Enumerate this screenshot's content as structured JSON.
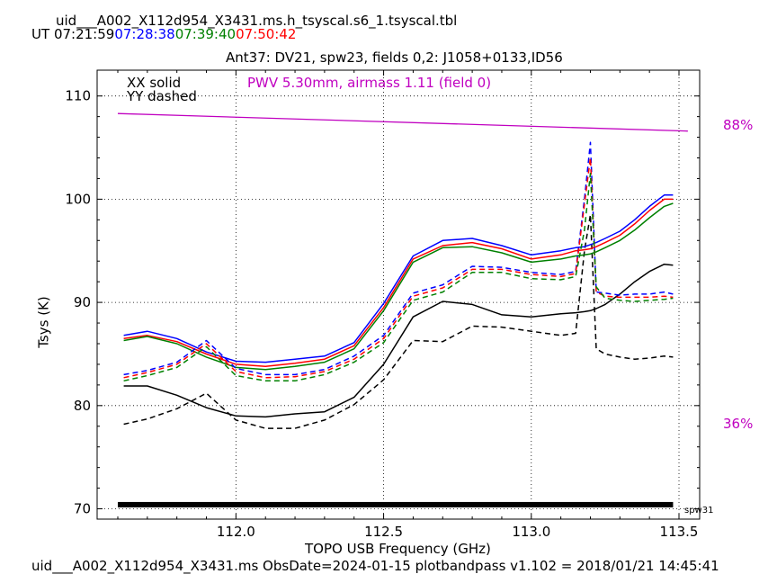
{
  "header": {
    "filename": "uid___A002_X112d954_X3431.ms.h_tsyscal.s6_1.tsyscal.tbl",
    "ut_label": "UT",
    "times": [
      {
        "text": "07:21:59",
        "color": "#000000"
      },
      {
        "text": "07:28:38",
        "color": "#0000ff"
      },
      {
        "text": "07:39:40",
        "color": "#008000"
      },
      {
        "text": "07:50:42",
        "color": "#ff0000"
      }
    ],
    "subtitle": "Ant37: DV21,  spw23,  fields 0,2: J1058+0133,ID56"
  },
  "footer": {
    "text": "uid___A002_X112d954_X3431.ms  ObsDate=2024-01-15   plotbandpass v1.102 = 2018/01/21 14:45:41"
  },
  "chart_data": {
    "type": "line",
    "title": "Ant37: DV21,  spw23,  fields 0,2: J1058+0133,ID56",
    "xlabel": "TOPO USB Frequency (GHz)",
    "ylabel": "Tsys (K)",
    "xlim": [
      111.53,
      113.57
    ],
    "ylim": [
      69,
      112.5
    ],
    "xticks": [
      "112.0",
      "112.5",
      "113.0",
      "113.5"
    ],
    "xtick_values": [
      112.0,
      112.5,
      113.0,
      113.5
    ],
    "yticks": [
      "70",
      "80",
      "90",
      "100",
      "110"
    ],
    "ytick_values": [
      70,
      80,
      90,
      100,
      110
    ],
    "grid": true,
    "legend": {
      "solid": "XX solid",
      "dashed": "YY dashed"
    },
    "annotation": {
      "text": "PWV 5.30mm, airmass 1.11 (field 0)",
      "color": "#c000c0"
    },
    "atm": {
      "color": "#c000c0",
      "labels": [
        "88%",
        "36%"
      ],
      "x": [
        111.6,
        113.53
      ],
      "y": [
        108.3,
        106.6
      ]
    },
    "spw_bar": {
      "label": "spw31",
      "x": [
        111.6,
        113.48
      ],
      "y": 70.4
    },
    "x": [
      111.62,
      111.7,
      111.8,
      111.9,
      112.0,
      112.1,
      112.2,
      112.3,
      112.4,
      112.5,
      112.6,
      112.7,
      112.8,
      112.9,
      113.0,
      113.1,
      113.15,
      113.18,
      113.2,
      113.22,
      113.25,
      113.3,
      113.35,
      113.4,
      113.45,
      113.48
    ],
    "series": [
      {
        "color": "#000000",
        "style": "solid",
        "values": [
          81.9,
          81.9,
          81.0,
          79.8,
          79.0,
          78.9,
          79.2,
          79.4,
          80.8,
          84.0,
          88.6,
          90.1,
          89.8,
          88.8,
          88.6,
          88.9,
          89.0,
          89.1,
          89.2,
          89.4,
          89.8,
          90.8,
          92.0,
          93.0,
          93.7,
          93.6
        ]
      },
      {
        "color": "#000000",
        "style": "dashed",
        "values": [
          78.2,
          78.7,
          79.7,
          81.2,
          78.6,
          77.8,
          77.8,
          78.6,
          80.1,
          82.5,
          86.3,
          86.2,
          87.7,
          87.6,
          87.2,
          86.8,
          87.0,
          95.0,
          98.5,
          85.5,
          85.0,
          84.7,
          84.5,
          84.6,
          84.8,
          84.7
        ]
      },
      {
        "color": "#0000ff",
        "style": "solid",
        "values": [
          86.8,
          87.2,
          86.5,
          85.2,
          84.3,
          84.2,
          84.5,
          84.8,
          86.1,
          89.9,
          94.5,
          96.0,
          96.2,
          95.5,
          94.6,
          95.0,
          95.3,
          95.4,
          95.6,
          95.8,
          96.2,
          96.9,
          98.0,
          99.3,
          100.4,
          100.4
        ]
      },
      {
        "color": "#ff0000",
        "style": "solid",
        "values": [
          86.5,
          86.8,
          86.2,
          85.0,
          84.0,
          83.8,
          84.1,
          84.5,
          85.8,
          89.5,
          94.2,
          95.5,
          95.8,
          95.2,
          94.2,
          94.6,
          95.0,
          95.1,
          95.2,
          95.4,
          95.8,
          96.5,
          97.6,
          98.9,
          100.0,
          100.0
        ]
      },
      {
        "color": "#008000",
        "style": "solid",
        "values": [
          86.3,
          86.7,
          86.0,
          84.7,
          83.7,
          83.5,
          83.8,
          84.2,
          85.5,
          89.2,
          93.9,
          95.3,
          95.4,
          94.8,
          93.9,
          94.2,
          94.5,
          94.6,
          94.7,
          94.9,
          95.3,
          96.0,
          97.0,
          98.2,
          99.3,
          99.6
        ]
      },
      {
        "color": "#0000ff",
        "style": "dashed",
        "values": [
          83.0,
          83.4,
          84.2,
          86.3,
          83.6,
          83.0,
          83.0,
          83.5,
          84.8,
          86.8,
          90.9,
          91.7,
          93.5,
          93.4,
          92.9,
          92.7,
          93.0,
          100.0,
          105.5,
          91.0,
          90.9,
          90.7,
          90.8,
          90.8,
          91.0,
          90.8
        ]
      },
      {
        "color": "#ff0000",
        "style": "dashed",
        "values": [
          82.7,
          83.2,
          84.0,
          86.0,
          83.3,
          82.7,
          82.8,
          83.3,
          84.5,
          86.5,
          90.6,
          91.4,
          93.2,
          93.2,
          92.7,
          92.5,
          92.8,
          99.5,
          104.0,
          91.0,
          90.6,
          90.5,
          90.5,
          90.5,
          90.6,
          90.5
        ]
      },
      {
        "color": "#008000",
        "style": "dashed",
        "values": [
          82.4,
          82.9,
          83.7,
          85.7,
          82.9,
          82.4,
          82.4,
          83.0,
          84.2,
          86.1,
          90.2,
          91.0,
          92.9,
          92.9,
          92.3,
          92.2,
          92.5,
          97.0,
          102.5,
          91.5,
          90.4,
          90.2,
          90.1,
          90.2,
          90.3,
          90.4
        ]
      }
    ]
  }
}
